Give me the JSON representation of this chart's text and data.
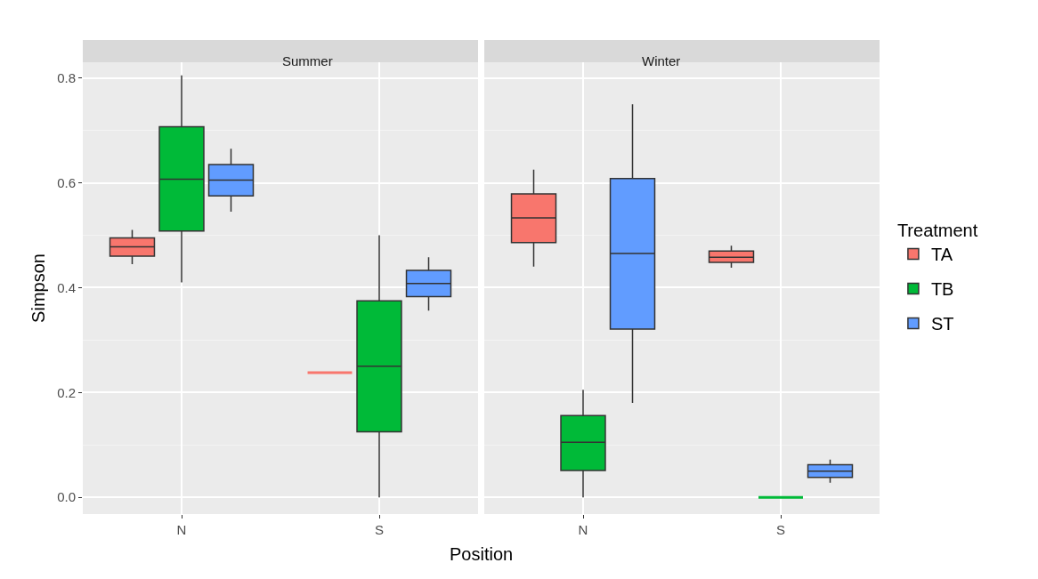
{
  "chart_data": [
    {
      "type": "box",
      "title": "Summer",
      "xlabel": "Position",
      "ylabel": "Simpson",
      "legend_title": "Treatment",
      "legend": "right",
      "grid": true,
      "categories": [
        "N",
        "S"
      ],
      "ylim": [
        -0.032,
        0.83
      ],
      "yticks": [
        {
          "value": 0,
          "label": "0.0"
        },
        0.2,
        0.4,
        0.6,
        0.8
      ],
      "series": [
        {
          "name": "TA",
          "color": "#f8766d",
          "boxes": [
            {
              "low": 0.445,
              "q1": 0.46,
              "median": 0.478,
              "q3": 0.495,
              "high": 0.51
            },
            {
              "low": 0.238,
              "q1": 0.238,
              "median": 0.238,
              "q3": 0.238,
              "high": 0.238
            }
          ]
        },
        {
          "name": "TB",
          "color": "#00ba38",
          "boxes": [
            {
              "low": 0.41,
              "q1": 0.508,
              "median": 0.607,
              "q3": 0.707,
              "high": 0.805
            },
            {
              "low": 0.0,
              "q1": 0.125,
              "median": 0.25,
              "q3": 0.375,
              "high": 0.5
            }
          ]
        },
        {
          "name": "ST",
          "color": "#619cff",
          "boxes": [
            {
              "low": 0.545,
              "q1": 0.575,
              "median": 0.605,
              "q3": 0.635,
              "high": 0.665
            },
            {
              "low": 0.356,
              "q1": 0.383,
              "median": 0.408,
              "q3": 0.433,
              "high": 0.458
            }
          ]
        }
      ]
    },
    {
      "type": "box",
      "title": "Winter",
      "grid": true,
      "tick_labels": "x",
      "categories": [
        "N",
        "S"
      ],
      "ylim": [
        -0.032,
        0.83
      ],
      "series": [
        {
          "color": "#f8766d",
          "boxes": [
            {
              "low": 0.44,
              "q1": 0.486,
              "median": 0.533,
              "q3": 0.579,
              "high": 0.625
            },
            {
              "low": 0.438,
              "q1": 0.448,
              "median": 0.458,
              "q3": 0.47,
              "high": 0.48
            }
          ]
        },
        {
          "color": "#00ba38",
          "boxes": [
            {
              "low": 0.0,
              "q1": 0.051,
              "median": 0.105,
              "q3": 0.156,
              "high": 0.205
            },
            {
              "low": 0.0,
              "q1": 0.0,
              "median": 0.0,
              "q3": 0.0,
              "high": 0.0
            }
          ]
        },
        {
          "color": "#619cff",
          "boxes": [
            {
              "low": 0.18,
              "q1": 0.321,
              "median": 0.465,
              "q3": 0.608,
              "high": 0.75
            },
            {
              "low": 0.028,
              "q1": 0.038,
              "median": 0.05,
              "q3": 0.062,
              "high": 0.072
            }
          ]
        }
      ]
    }
  ]
}
